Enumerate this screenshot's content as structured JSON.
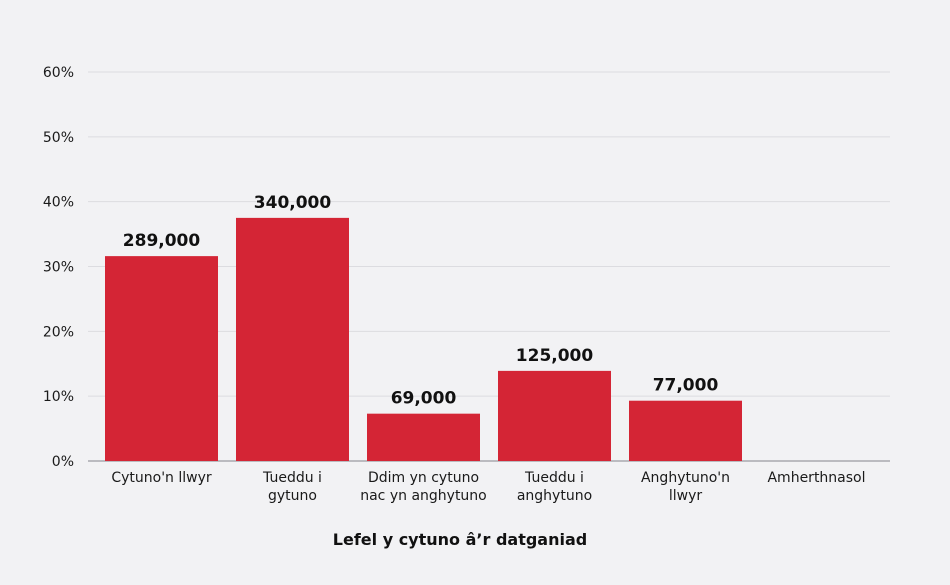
{
  "chart_data": {
    "type": "bar",
    "title": "",
    "xlabel": "Lefel y cytuno â’r datganiad",
    "ylabel": "",
    "ylim": [
      0,
      60
    ],
    "yticks": [
      "0%",
      "10%",
      "20%",
      "30%",
      "40%",
      "50%",
      "60%"
    ],
    "grid": true,
    "categories": [
      [
        "Cytuno'n llwyr"
      ],
      [
        "Tueddu i",
        "gytuno"
      ],
      [
        "Ddim yn cytuno",
        "nac yn anghytuno"
      ],
      [
        "Tueddu i",
        "anghytuno"
      ],
      [
        "Anghytuno'n",
        "llwyr"
      ],
      [
        "Amherthnasol"
      ]
    ],
    "values": [
      31.6,
      37.5,
      7.3,
      13.9,
      9.3,
      0
    ],
    "data_labels": [
      "289,000",
      "340,000",
      "69,000",
      "125,000",
      "77,000",
      ""
    ],
    "colors": {
      "bar": "#d42535",
      "grid": "#dcdce0",
      "background": "#f2f2f4"
    }
  }
}
